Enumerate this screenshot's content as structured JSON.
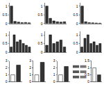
{
  "chart_data": [
    {
      "type": "bar",
      "categories": [
        null,
        null,
        null,
        null,
        null,
        null
      ],
      "values": [
        1.0,
        0.12,
        0.08,
        0.05,
        0.06,
        0.04
      ],
      "color": "#333333",
      "ylim": [
        0,
        1.2
      ],
      "yticks": [
        0,
        0.5,
        1
      ]
    },
    {
      "type": "bar",
      "categories": [
        null,
        null,
        null,
        null,
        null,
        null
      ],
      "values": [
        1.0,
        0.3,
        0.15,
        0.1,
        0.08,
        0.1
      ],
      "color": "#333333",
      "ylim": [
        0,
        1.2
      ],
      "yticks": [
        0,
        0.5,
        1
      ]
    },
    {
      "type": "bar",
      "categories": [
        null,
        null,
        null,
        null,
        null,
        null
      ],
      "values": [
        1.0,
        0.1,
        0.05,
        0.04,
        0.03,
        0.02
      ],
      "color": "#333333",
      "ylim": [
        0,
        1.2
      ],
      "yticks": [
        0,
        0.5,
        1
      ]
    },
    {
      "type": "bar",
      "categories": [
        null,
        null,
        null,
        null,
        null,
        null,
        null
      ],
      "values": [
        0.3,
        1.0,
        0.6,
        0.7,
        0.5,
        0.4,
        0.3
      ],
      "color": "#333333",
      "ylim": [
        0,
        1.2
      ],
      "yticks": [
        0,
        0.5,
        1
      ]
    },
    {
      "type": "bar",
      "categories": [
        null,
        null,
        null,
        null,
        null,
        null
      ],
      "values": [
        0.4,
        1.0,
        0.5,
        0.6,
        0.7,
        0.3
      ],
      "color": "#333333",
      "ylim": [
        0,
        1.2
      ],
      "yticks": [
        0,
        0.5,
        1
      ]
    },
    {
      "type": "bar",
      "categories": [
        null,
        null,
        null,
        null,
        null,
        null,
        null
      ],
      "values": [
        0.3,
        0.8,
        1.0,
        0.5,
        0.6,
        0.4,
        0.5
      ],
      "color": "#333333",
      "ylim": [
        0,
        1.2
      ],
      "yticks": [
        0,
        0.5,
        1
      ]
    },
    {
      "type": "bar",
      "categories": [
        null,
        null
      ],
      "values": [
        1,
        2.4
      ],
      "colors": [
        "#ffffff",
        "#333333"
      ],
      "ylim": [
        0,
        3
      ],
      "yticks": [
        0,
        1,
        2,
        3
      ]
    },
    {
      "type": "bar",
      "categories": [
        null,
        null
      ],
      "values": [
        1,
        2.8
      ],
      "colors": [
        "#ffffff",
        "#333333"
      ],
      "ylim": [
        0,
        3
      ],
      "yticks": [
        0,
        1,
        2,
        3
      ]
    },
    {
      "type": "bar",
      "categories": [
        null,
        null
      ],
      "values": [
        1,
        2.2
      ],
      "colors": [
        "#ffffff",
        "#333333"
      ],
      "ylim": [
        0,
        3
      ],
      "yticks": [
        0,
        1,
        2,
        3
      ]
    },
    {
      "type": "bar",
      "categories": [
        null,
        null
      ],
      "values": [
        1,
        0.5
      ],
      "colors": [
        "#ffffff",
        "#333333"
      ],
      "ylim": [
        0,
        1.5
      ],
      "yticks": [
        0,
        0.5,
        1,
        1.5
      ]
    }
  ]
}
